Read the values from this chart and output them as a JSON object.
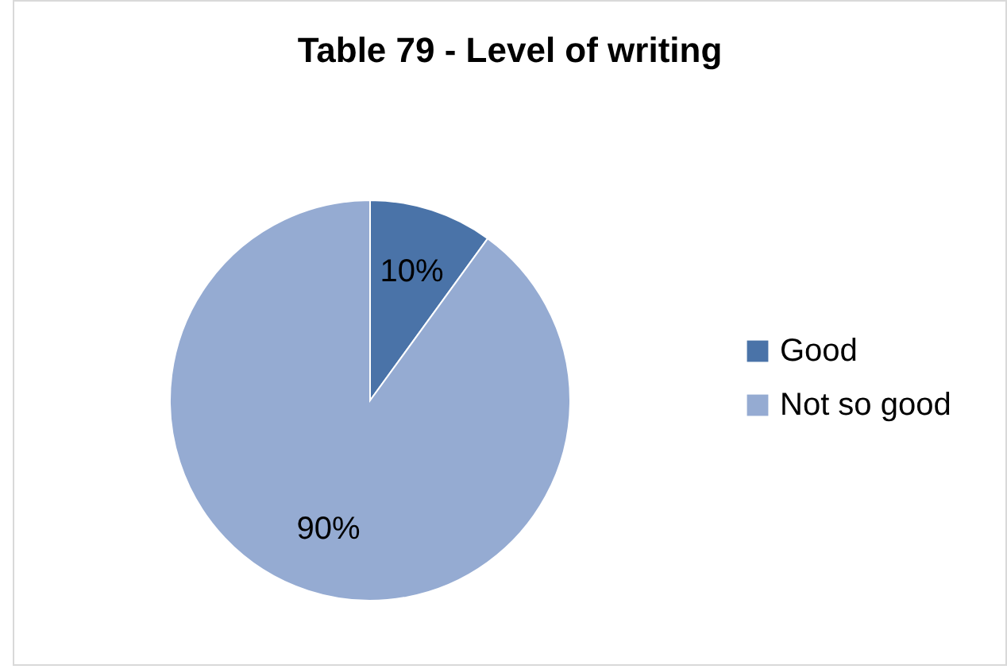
{
  "chart_data": {
    "type": "pie",
    "title": "Table 79 - Level of writing",
    "categories": [
      "Good",
      "Not so good"
    ],
    "values": [
      10,
      90
    ],
    "colors": [
      "#4a73a8",
      "#95abd2"
    ],
    "value_labels": [
      "10%",
      "90%"
    ],
    "legend": "right"
  }
}
